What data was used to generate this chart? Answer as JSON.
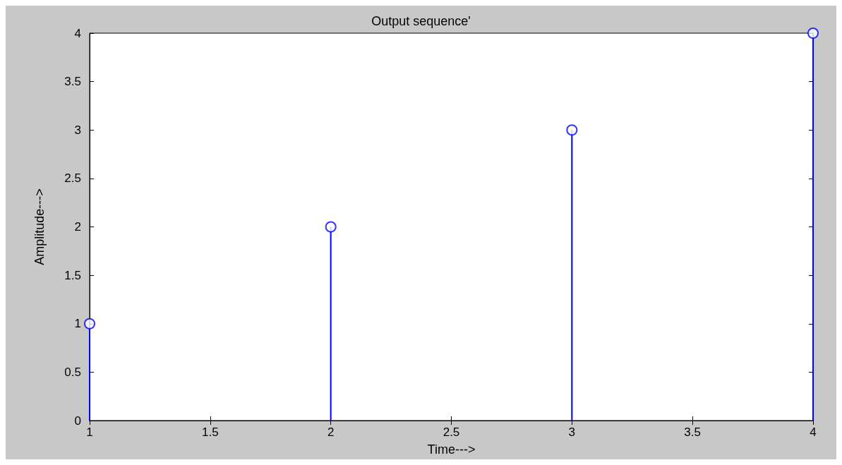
{
  "chart_data": {
    "type": "lollipop",
    "title": "Output sequence'",
    "xlabel": "Time--->",
    "ylabel": "Amplitude--->",
    "x": [
      1,
      2,
      3,
      4
    ],
    "series": [
      {
        "color": "#0000ff",
        "values": [
          1,
          2,
          3,
          4
        ]
      }
    ],
    "xlim": [
      1,
      4
    ],
    "xticks": [
      1,
      1.5,
      2,
      2.5,
      3,
      3.5,
      4
    ],
    "ylim": [
      0,
      4
    ],
    "yticks": [
      0,
      0.5,
      1,
      1.5,
      2,
      2.5,
      3,
      3.5,
      4
    ],
    "grid": false,
    "marker": "circle",
    "line_style": "solid"
  }
}
